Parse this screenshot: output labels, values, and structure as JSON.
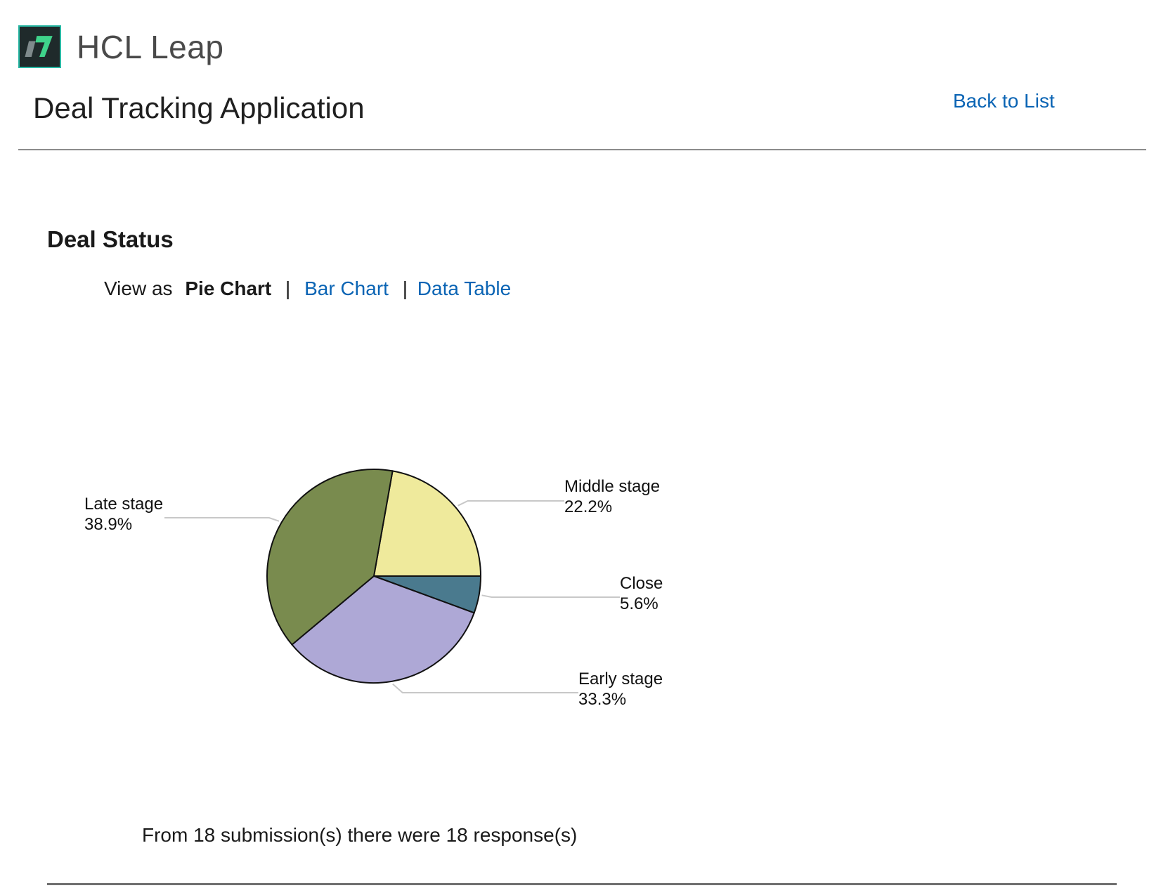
{
  "header": {
    "logo_text": "HCL Leap",
    "app_title": "Deal Tracking Application",
    "back_link": "Back to List"
  },
  "section": {
    "title": "Deal Status"
  },
  "view_as": {
    "prefix": "View as",
    "current": "Pie Chart",
    "separator": "|",
    "links": [
      "Bar Chart",
      "Data Table"
    ]
  },
  "chart_data": {
    "type": "pie",
    "slices": [
      {
        "label": "Middle stage",
        "value": 22.2,
        "display": "22.2%",
        "color": "#efea9c"
      },
      {
        "label": "Close",
        "value": 5.6,
        "display": "5.6%",
        "color": "#4a7a8e"
      },
      {
        "label": "Early stage",
        "value": 33.3,
        "display": "33.3%",
        "color": "#aea8d6"
      },
      {
        "label": "Late stage",
        "value": 38.9,
        "display": "38.9%",
        "color": "#798b4e"
      }
    ]
  },
  "footer": {
    "summary": "From 18 submission(s) there were 18 response(s)"
  }
}
